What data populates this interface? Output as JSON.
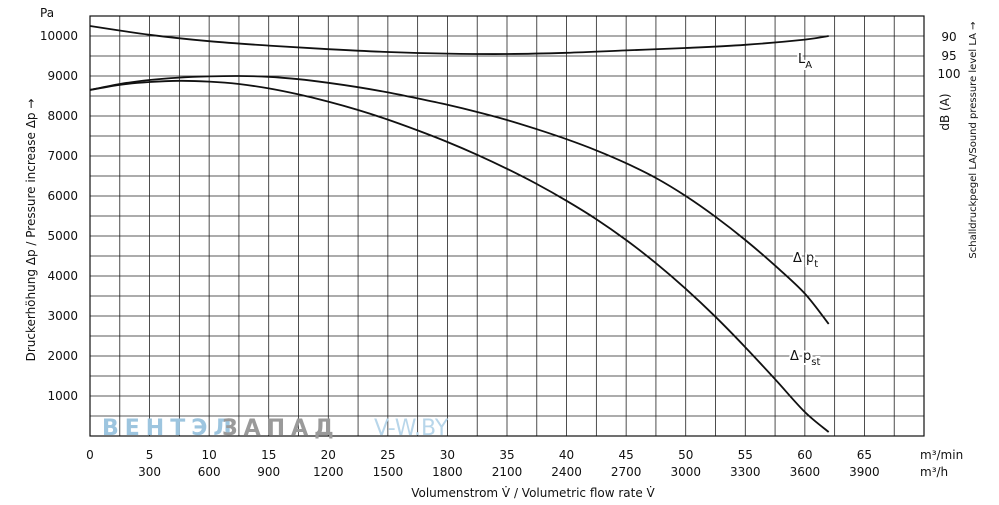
{
  "chart_data": {
    "type": "line",
    "xlabel": "Volumenstrom V̇ / Volumetric flow rate V̇",
    "ylabel": "Druckerhöhung Δp / Pressure increase Δp →",
    "y_unit": "Pa",
    "y2_label": "Schalldruckpegel LA/Sound pressure level LA →",
    "y2_unit": "dB (A)",
    "x_unit_primary": "m³/min",
    "x_unit_secondary": "m³/h",
    "xlim": [
      0,
      70
    ],
    "ylim": [
      0,
      10500
    ],
    "x_ticks": [
      0,
      5,
      10,
      15,
      20,
      25,
      30,
      35,
      40,
      45,
      50,
      55,
      60,
      65
    ],
    "x_tick_labels": [
      "0",
      "5",
      "10",
      "15",
      "20",
      "25",
      "30",
      "35",
      "40",
      "45",
      "50",
      "55",
      "60",
      "65"
    ],
    "x2_tick_labels": [
      "300",
      "600",
      "900",
      "1200",
      "1500",
      "1800",
      "2100",
      "2400",
      "2700",
      "3000",
      "3300",
      "3600",
      "3900"
    ],
    "y_ticks": [
      1000,
      2000,
      3000,
      4000,
      5000,
      6000,
      7000,
      8000,
      9000,
      10000
    ],
    "y_tick_labels": [
      "1000",
      "2000",
      "3000",
      "4000",
      "5000",
      "6000",
      "7000",
      "8000",
      "9000",
      "10000"
    ],
    "y2_ticks": [
      90,
      95,
      100
    ],
    "y2_tick_labels": [
      "90",
      "95",
      "100"
    ],
    "grid": true,
    "series": [
      {
        "name": "Δ pt",
        "label_main": "Δ p",
        "label_sub": "t",
        "x": [
          0,
          2.5,
          5,
          7.5,
          10,
          12.5,
          15,
          17.5,
          20,
          22.5,
          25,
          27.5,
          30,
          32.5,
          35,
          37.5,
          40,
          42.5,
          45,
          47.5,
          50,
          52.5,
          55,
          57.5,
          60,
          62
        ],
        "y": [
          8650,
          8800,
          8900,
          8960,
          8990,
          9000,
          8980,
          8920,
          8830,
          8720,
          8590,
          8440,
          8280,
          8100,
          7900,
          7670,
          7420,
          7140,
          6820,
          6450,
          6000,
          5480,
          4900,
          4260,
          3560,
          2800
        ]
      },
      {
        "name": "Δ pst",
        "label_main": "Δ p",
        "label_sub": "st",
        "x": [
          0,
          2.5,
          5,
          7.5,
          10,
          12.5,
          15,
          17.5,
          20,
          22.5,
          25,
          27.5,
          30,
          32.5,
          35,
          37.5,
          40,
          42.5,
          45,
          47.5,
          50,
          52.5,
          55,
          57.5,
          60,
          62
        ],
        "y": [
          8650,
          8780,
          8850,
          8880,
          8860,
          8800,
          8690,
          8540,
          8360,
          8150,
          7910,
          7640,
          7350,
          7030,
          6680,
          6300,
          5880,
          5420,
          4900,
          4320,
          3680,
          2980,
          2220,
          1420,
          600,
          100
        ]
      },
      {
        "name": "LA",
        "label_main": "L",
        "label_sub": "A",
        "x": [
          0,
          5,
          10,
          15,
          20,
          25,
          30,
          35,
          40,
          45,
          50,
          55,
          60,
          62
        ],
        "y": [
          10250,
          10030,
          9870,
          9760,
          9670,
          9600,
          9560,
          9550,
          9580,
          9640,
          9700,
          9780,
          9910,
          10000
        ]
      }
    ],
    "watermark": {
      "part1": "ВЕНТЭЛ",
      "part2": "ЗАПАД",
      "part3": "V-W.BY",
      "color1": "#9dc5df",
      "color2": "#9a9a9a",
      "color3": "#b8d6ea"
    }
  }
}
